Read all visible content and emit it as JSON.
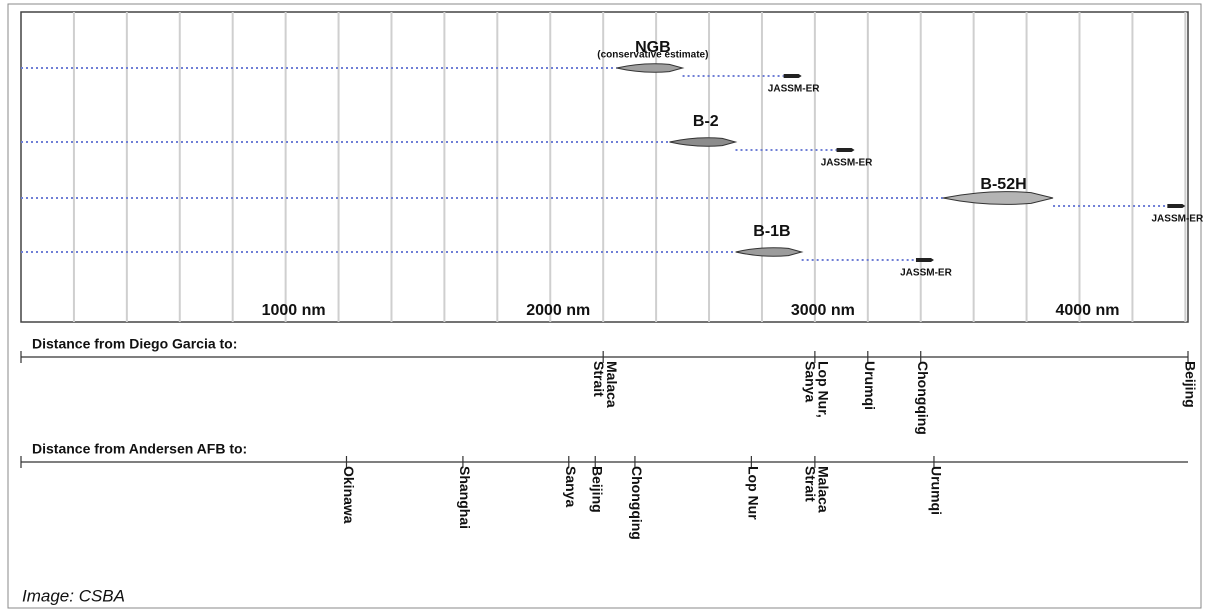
{
  "chart_data": {
    "type": "range",
    "xlim": [
      0,
      4410
    ],
    "xticks": [
      {
        "value": 1000,
        "label": "1000 nm"
      },
      {
        "value": 2000,
        "label": "2000 nm"
      },
      {
        "value": 3000,
        "label": "3000 nm"
      },
      {
        "value": 4000,
        "label": "4000 nm"
      }
    ],
    "minor_xticks": [
      200,
      400,
      600,
      800,
      1200,
      1400,
      1600,
      1800,
      2200,
      2400,
      2600,
      2800,
      3200,
      3400,
      3600,
      3800,
      4200,
      4400
    ],
    "grid": true,
    "series": [
      {
        "name": "NGB",
        "subtitle": "(conservative estimate)",
        "range": 2500,
        "missile": "JASSM-ER",
        "missile_range": 2950,
        "color": "#a0a0a0"
      },
      {
        "name": "B-2",
        "range": 2700,
        "missile": "JASSM-ER",
        "missile_range": 3150,
        "color": "#8c8c8c"
      },
      {
        "name": "B-52H",
        "range": 3900,
        "missile": "JASSM-ER",
        "missile_range": 4400,
        "color": "#b4b4b4"
      },
      {
        "name": "B-1B",
        "range": 2950,
        "missile": "JASSM-ER",
        "missile_range": 3450,
        "color": "#9c9c9c"
      }
    ],
    "destinations": [
      {
        "name": "Distance from Diego Garcia to:",
        "places": [
          {
            "label": [
              "Malaca",
              "Strait"
            ],
            "distance": 2200
          },
          {
            "label": [
              "Lop Nur,",
              "Sanya"
            ],
            "distance": 3000
          },
          {
            "label": [
              "Urumqi"
            ],
            "distance": 3200
          },
          {
            "label": [
              "Chongqing"
            ],
            "distance": 3400
          },
          {
            "label": [
              "Beijing"
            ],
            "distance": 4410
          }
        ]
      },
      {
        "name": "Distance from Andersen AFB to:",
        "places": [
          {
            "label": [
              "Okinawa"
            ],
            "distance": 1230
          },
          {
            "label": [
              "Shanghai"
            ],
            "distance": 1670
          },
          {
            "label": [
              "Sanya"
            ],
            "distance": 2070
          },
          {
            "label": [
              "Beijing"
            ],
            "distance": 2170
          },
          {
            "label": [
              "Chongqing"
            ],
            "distance": 2320
          },
          {
            "label": [
              "Lop Nur"
            ],
            "distance": 2760
          },
          {
            "label": [
              "Malaca",
              "Strait"
            ],
            "distance": 3000
          },
          {
            "label": [
              "Urumqi"
            ],
            "distance": 3450
          }
        ]
      }
    ]
  },
  "source": "Image: CSBA"
}
